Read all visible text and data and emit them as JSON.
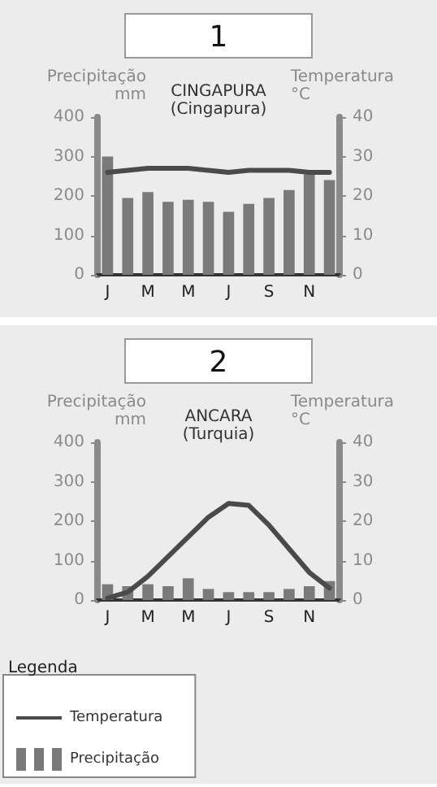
{
  "chart_data": [
    {
      "type": "bar",
      "title": "1",
      "subtitle": "CINGAPURA\n(Cingapura)",
      "ylabel": "Precipitação\nmm",
      "y2label": "Temperatura\n°C",
      "categories": [
        "J",
        null,
        "M",
        null,
        "M",
        null,
        "J",
        null,
        "S",
        null,
        "N",
        null
      ],
      "series": [
        {
          "color": "#7a7a7a",
          "values": [
            300,
            195,
            210,
            185,
            190,
            185,
            160,
            180,
            195,
            215,
            255,
            240
          ]
        },
        {
          "type": "line",
          "axis": "y2",
          "color": "#4a4a4a",
          "values": [
            26,
            26.5,
            27,
            27,
            27,
            26.5,
            26,
            26.5,
            26.5,
            26.5,
            26,
            26
          ]
        }
      ],
      "ylim": [
        0,
        400
      ],
      "yticks": [
        0,
        100,
        200,
        300,
        400
      ],
      "y2lim": [
        0,
        40
      ],
      "y2ticks": [
        0,
        10,
        20,
        30,
        40
      ],
      "grid": false,
      "marker": "none",
      "legend": false
    },
    {
      "type": "bar",
      "title": "2",
      "subtitle": "ANCARA\n(Turquia)",
      "ylabel": "Precipitação\nmm",
      "y2label": "Temperatura\n°C",
      "legend_title": "Legenda",
      "categories": [
        "J",
        null,
        "M",
        null,
        "M",
        null,
        "J",
        null,
        "S",
        null,
        "N",
        null
      ],
      "series": [
        {
          "type": "line",
          "name": "Temperatura",
          "axis": "y2",
          "color": "#4a4a4a",
          "values": [
            0.5,
            2,
            6,
            11,
            16,
            21,
            24.5,
            24,
            19,
            13,
            7,
            3
          ]
        },
        {
          "name": "Precipitação",
          "color": "#7a7a7a",
          "values": [
            40,
            35,
            40,
            35,
            55,
            28,
            20,
            20,
            20,
            28,
            35,
            48
          ]
        }
      ],
      "ylim": [
        0,
        400
      ],
      "yticks": [
        0,
        100,
        200,
        300,
        400
      ],
      "y2lim": [
        0,
        40
      ],
      "y2ticks": [
        0,
        10,
        20,
        30,
        40
      ],
      "grid": false,
      "marker": "none",
      "legend": "bottom left"
    }
  ]
}
